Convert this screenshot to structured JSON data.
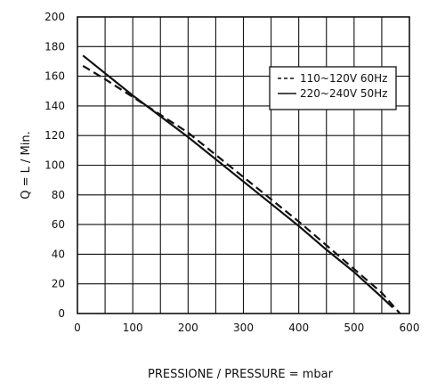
{
  "chart_data": {
    "type": "line",
    "title": "",
    "xlabel": "PRESSIONE /  PRESSURE = mbar",
    "ylabel": "Q = L / Min.",
    "xlim": [
      0,
      600
    ],
    "ylim": [
      0,
      200
    ],
    "x_ticks": [
      0,
      100,
      200,
      300,
      400,
      500,
      600
    ],
    "y_ticks": [
      0,
      20,
      40,
      60,
      80,
      100,
      120,
      140,
      160,
      180,
      200
    ],
    "x_grid_step": 50,
    "y_grid_step": 20,
    "grid": true,
    "legend_position": "top-right",
    "series": [
      {
        "name": "110~120V 60Hz",
        "style": "dashed",
        "color": "#111111",
        "x": [
          10,
          50,
          100,
          150,
          200,
          250,
          300,
          350,
          400,
          450,
          500,
          550,
          583
        ],
        "y": [
          167,
          158,
          146,
          134,
          122,
          107,
          92,
          77,
          62,
          46,
          30,
          14,
          0
        ]
      },
      {
        "name": "220~240V 50Hz",
        "style": "solid",
        "color": "#111111",
        "x": [
          10,
          50,
          100,
          150,
          200,
          250,
          300,
          350,
          400,
          450,
          500,
          550,
          570
        ],
        "y": [
          174,
          162,
          147,
          133,
          119,
          104,
          89,
          74,
          59,
          43,
          28,
          11,
          4
        ]
      }
    ]
  }
}
